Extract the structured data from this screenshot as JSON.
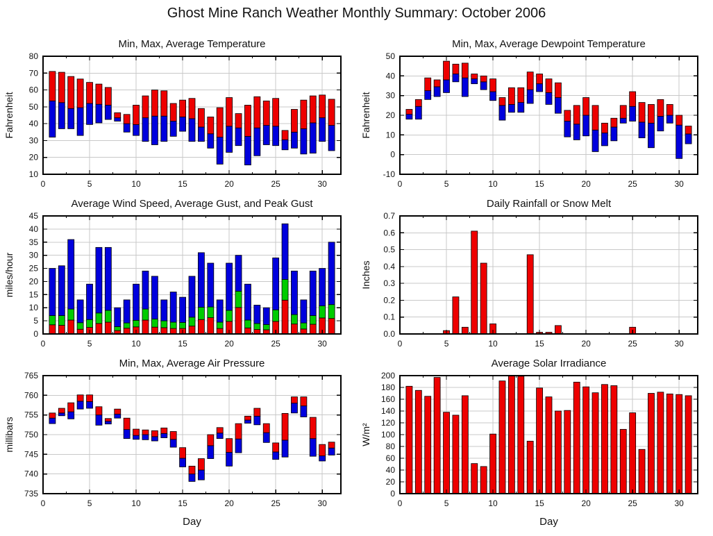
{
  "page": {
    "title": "Ghost Mine Ranch Weather Monthly Summary: October 2006"
  },
  "colors": {
    "bar_red": "#ee0000",
    "bar_blue": "#0000dd",
    "bar_green": "#00cc00",
    "bar_border": "#000000",
    "grid": "#c8c8c8",
    "axis": "#000000",
    "text": "#111111"
  },
  "chart_data": [
    {
      "id": "temperature",
      "type": "range",
      "title": "Min, Max, Average Temperature",
      "xlabel": "",
      "ylabel": "Fahrenheit",
      "xlim": [
        0,
        32
      ],
      "xticks": [
        0,
        5,
        10,
        15,
        20,
        25,
        30
      ],
      "ylim": [
        10,
        80
      ],
      "ytick_step": 10,
      "ytick_decimals": 0,
      "grid": {
        "horizontal": true,
        "vertical": true
      },
      "legend": "none",
      "days": [
        1,
        2,
        3,
        4,
        5,
        6,
        7,
        8,
        9,
        10,
        11,
        12,
        13,
        14,
        15,
        16,
        17,
        18,
        19,
        20,
        21,
        22,
        23,
        24,
        25,
        26,
        27,
        28,
        29,
        30,
        31
      ],
      "min": [
        32,
        37,
        37,
        33,
        39.5,
        40.5,
        42.5,
        41.5,
        35,
        33,
        29.5,
        27.5,
        29.5,
        32.5,
        35.5,
        29.5,
        29.5,
        25.5,
        16,
        23,
        27,
        15.5,
        21,
        27.5,
        27,
        24.5,
        25.5,
        22,
        22.5,
        29.5,
        24
      ],
      "avg": [
        53.5,
        52.5,
        49,
        49.5,
        52,
        51.5,
        51,
        43.5,
        40,
        39.5,
        43.5,
        44.5,
        44.5,
        41.5,
        44,
        43,
        38,
        34,
        32,
        38.5,
        37.5,
        32.5,
        37.5,
        39,
        38.5,
        30.5,
        35,
        37,
        40.5,
        43.5,
        39
      ],
      "max": [
        71,
        70.5,
        68,
        66.5,
        64.5,
        63.5,
        61.5,
        46.5,
        45.5,
        51,
        56.5,
        60,
        59.5,
        52,
        54,
        55,
        49,
        44,
        49.5,
        55.5,
        46,
        51,
        56,
        53.5,
        55,
        36,
        48.5,
        54,
        56.5,
        57,
        54.5
      ]
    },
    {
      "id": "dewpoint",
      "type": "range",
      "title": "Min, Max, Average Dewpoint Temperature",
      "xlabel": "",
      "ylabel": "Fahrenheit",
      "xlim": [
        0,
        32
      ],
      "xticks": [
        0,
        5,
        10,
        15,
        20,
        25,
        30
      ],
      "ylim": [
        -10,
        50
      ],
      "ytick_step": 10,
      "ytick_decimals": 0,
      "grid": {
        "horizontal": true,
        "vertical": true
      },
      "legend": "none",
      "days": [
        1,
        2,
        3,
        4,
        5,
        6,
        7,
        8,
        9,
        10,
        11,
        12,
        13,
        14,
        15,
        16,
        17,
        18,
        19,
        20,
        21,
        22,
        23,
        24,
        25,
        26,
        27,
        28,
        29,
        30,
        31
      ],
      "min": [
        18,
        18,
        28,
        29.5,
        31.5,
        37,
        29.5,
        36,
        33,
        27.5,
        17.5,
        21.5,
        21.5,
        26,
        32,
        25.5,
        21,
        9,
        7.5,
        9.5,
        1.5,
        4.5,
        7,
        16,
        17,
        8.5,
        3.5,
        12,
        16,
        -2,
        5.5
      ],
      "avg": [
        20.5,
        24.5,
        32.5,
        34.5,
        38,
        41,
        39,
        38.5,
        37,
        32,
        25,
        25.5,
        26.5,
        33,
        36,
        31.5,
        29,
        17,
        15.5,
        20,
        12.5,
        11,
        14,
        18.5,
        24.5,
        16.5,
        16,
        19.5,
        20,
        15,
        10.5
      ],
      "max": [
        23,
        28,
        39,
        38,
        47.5,
        46,
        46.5,
        41,
        40,
        38.5,
        29,
        34,
        34,
        42,
        41,
        38.5,
        36.5,
        22.5,
        25,
        29,
        25,
        16,
        18.5,
        25,
        32,
        26.5,
        25.5,
        28,
        25.5,
        20,
        14.5
      ]
    },
    {
      "id": "wind",
      "type": "stacked",
      "title": "Average Wind Speed, Average Gust, and Peak Gust",
      "xlabel": "",
      "ylabel": "miles/hour",
      "xlim": [
        0,
        32
      ],
      "xticks": [
        0,
        5,
        10,
        15,
        20,
        25,
        30
      ],
      "ylim": [
        0,
        45
      ],
      "ytick_step": 5,
      "ytick_decimals": 0,
      "grid": {
        "horizontal": true,
        "vertical": true
      },
      "legend": "none",
      "days": [
        1,
        2,
        3,
        4,
        5,
        6,
        7,
        8,
        9,
        10,
        11,
        12,
        13,
        14,
        15,
        16,
        17,
        18,
        19,
        20,
        21,
        22,
        23,
        24,
        25,
        26,
        27,
        28,
        29,
        30,
        31
      ],
      "series": [
        {
          "name": "Average Wind Speed",
          "color": "bar_red",
          "tops": [
            3.5,
            3.3,
            5.3,
            1.8,
            2.5,
            4,
            4.5,
            1.3,
            2.2,
            2.7,
            5.3,
            2.6,
            2.4,
            2.1,
            2.1,
            3,
            5.5,
            6.2,
            2.1,
            4.8,
            10.1,
            2.3,
            1.7,
            1.6,
            4.8,
            12.9,
            3.8,
            1.9,
            3.7,
            6.1,
            5.9
          ]
        },
        {
          "name": "Average Gust",
          "color": "bar_green",
          "tops": [
            7,
            7,
            9.5,
            4.3,
            5.5,
            8,
            9,
            2.8,
            4.2,
            5.2,
            9.5,
            5.7,
            5,
            4.5,
            4.4,
            6.4,
            10.2,
            10.3,
            4.5,
            9,
            16.3,
            5.3,
            4,
            3.6,
            9.2,
            20.8,
            7.4,
            4.2,
            7,
            10.7,
            11.2
          ]
        },
        {
          "name": "Peak Gust",
          "color": "bar_blue",
          "tops": [
            25,
            26,
            36,
            13,
            19,
            33,
            33,
            10,
            13,
            19,
            24,
            22,
            13,
            16,
            14,
            22,
            31,
            27,
            13,
            27,
            30,
            19,
            11,
            10,
            29,
            42,
            24,
            13,
            24,
            25,
            35
          ]
        }
      ]
    },
    {
      "id": "rain",
      "type": "bar",
      "title": "Daily Rainfall or Snow Melt",
      "xlabel": "",
      "ylabel": "Inches",
      "xlim": [
        0,
        32
      ],
      "xticks": [
        0,
        5,
        10,
        15,
        20,
        25,
        30
      ],
      "ylim": [
        0,
        0.7
      ],
      "ytick_step": 0.1,
      "ytick_decimals": 1,
      "grid": {
        "horizontal": true,
        "vertical": true
      },
      "legend": "none",
      "bar_color": "bar_red",
      "days": [
        1,
        2,
        3,
        4,
        5,
        6,
        7,
        8,
        9,
        10,
        11,
        12,
        13,
        14,
        15,
        16,
        17,
        18,
        19,
        20,
        21,
        22,
        23,
        24,
        25,
        26,
        27,
        28,
        29,
        30,
        31
      ],
      "values": [
        0,
        0,
        0,
        0,
        0.02,
        0.22,
        0.04,
        0.61,
        0.42,
        0.06,
        0,
        0,
        0,
        0.47,
        0.01,
        0.01,
        0.05,
        0,
        0,
        0,
        0,
        0,
        0,
        0,
        0.04,
        0,
        0,
        0,
        0,
        0,
        0
      ]
    },
    {
      "id": "pressure",
      "type": "range",
      "title": "Min, Max, Average Air Pressure",
      "xlabel": "Day",
      "ylabel": "millibars",
      "xlim": [
        0,
        32
      ],
      "xticks": [
        0,
        5,
        10,
        15,
        20,
        25,
        30
      ],
      "ylim": [
        735,
        765
      ],
      "ytick_step": 5,
      "ytick_decimals": 0,
      "grid": {
        "horizontal": true,
        "vertical": true
      },
      "legend": "none",
      "days": [
        1,
        2,
        3,
        4,
        5,
        6,
        7,
        8,
        9,
        10,
        11,
        12,
        13,
        14,
        15,
        16,
        17,
        18,
        19,
        20,
        21,
        22,
        23,
        24,
        25,
        26,
        27,
        28,
        29,
        30,
        31
      ],
      "min": [
        752.8,
        754.8,
        754,
        756.5,
        756.7,
        752.4,
        752.7,
        754.2,
        749,
        748.8,
        748.7,
        748.4,
        749.2,
        746.8,
        741.8,
        738.1,
        738.5,
        743.9,
        749,
        742,
        745.4,
        752.9,
        752.5,
        748,
        743.7,
        744.3,
        755.5,
        754.5,
        744.5,
        743.3,
        744.8
      ],
      "avg": [
        754.2,
        755.5,
        755.8,
        758.5,
        758.4,
        755,
        753.4,
        755.2,
        751.3,
        749.8,
        750,
        749.5,
        750.3,
        748.8,
        744,
        740,
        741,
        747.2,
        750.4,
        745.5,
        748.9,
        753.7,
        754.7,
        750.5,
        745.6,
        748.6,
        758,
        757.3,
        749,
        744.6,
        746.6
      ],
      "max": [
        755.5,
        756.7,
        758.1,
        760.1,
        760.1,
        757.1,
        754.1,
        756.5,
        754.2,
        751.4,
        751.2,
        751,
        751.7,
        750.8,
        746.7,
        742,
        743.9,
        750,
        751.8,
        749,
        752.8,
        754.7,
        756.7,
        752.8,
        747.9,
        755.4,
        759.6,
        759.6,
        754.4,
        747.5,
        748.1
      ]
    },
    {
      "id": "solar",
      "type": "bar",
      "title": "Average Solar Irradiance",
      "xlabel": "Day",
      "ylabel": "W/m²",
      "xlim": [
        0,
        32
      ],
      "xticks": [
        0,
        5,
        10,
        15,
        20,
        25,
        30
      ],
      "ylim": [
        0,
        200
      ],
      "ytick_step": 20,
      "ytick_decimals": 0,
      "grid": {
        "horizontal": true,
        "vertical": true
      },
      "legend": "none",
      "bar_color": "bar_red",
      "days": [
        1,
        2,
        3,
        4,
        5,
        6,
        7,
        8,
        9,
        10,
        11,
        12,
        13,
        14,
        15,
        16,
        17,
        18,
        19,
        20,
        21,
        22,
        23,
        24,
        25,
        26,
        27,
        28,
        29,
        30,
        31
      ],
      "values": [
        182,
        175,
        165,
        197,
        138,
        133,
        166,
        51,
        46,
        101,
        191,
        200,
        199,
        89,
        179,
        164,
        140,
        141,
        189,
        181,
        171,
        185,
        183,
        109,
        137,
        75,
        170,
        172,
        169,
        168,
        166
      ]
    }
  ]
}
